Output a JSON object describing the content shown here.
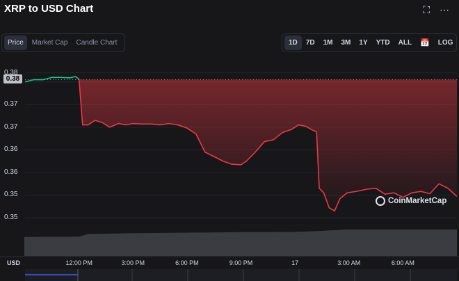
{
  "header": {
    "title": "XRP to USD Chart"
  },
  "icons": {
    "fullscreen": "fullscreen-icon",
    "more": "more-icon",
    "calendar": "calendar-icon"
  },
  "tabs": [
    {
      "label": "Price",
      "active": true
    },
    {
      "label": "Market Cap",
      "active": false
    },
    {
      "label": "Candle Chart",
      "active": false
    }
  ],
  "ranges": [
    {
      "label": "1D",
      "active": true
    },
    {
      "label": "7D",
      "active": false
    },
    {
      "label": "1M",
      "active": false
    },
    {
      "label": "3M",
      "active": false
    },
    {
      "label": "1Y",
      "active": false
    },
    {
      "label": "YTD",
      "active": false
    },
    {
      "label": "ALL",
      "active": false
    }
  ],
  "log_label": "LOG",
  "current_price": "0.38",
  "currency_label": "USD",
  "watermark": "CoinMarketCap",
  "colors": {
    "up": "#16c784",
    "down": "#ea3943",
    "bg": "#17171a"
  },
  "chart_data": {
    "type": "line",
    "title": "",
    "xlabel": "",
    "ylabel": "",
    "ytick_labels": [
      "0.38",
      "0.38",
      "0.37",
      "0.37",
      "0.36",
      "0.36",
      "0.35",
      "0.35"
    ],
    "ytick_values": [
      0.38,
      0.378,
      0.373,
      0.368,
      0.363,
      0.358,
      0.353,
      0.348
    ],
    "ylim": [
      0.346,
      0.3815
    ],
    "xtick_labels": [
      "12:00 PM",
      "3:00 PM",
      "6:00 PM",
      "9:00 PM",
      "17",
      "3:00 AM",
      "6:00 AM"
    ],
    "xtick_values": [
      3,
      6,
      9,
      12,
      15,
      18,
      21
    ],
    "xlim": [
      0,
      24
    ],
    "reference_price": 0.3785,
    "series": [
      {
        "x": [
          0,
          0.5,
          1.0,
          1.5,
          2.0,
          2.5,
          2.8,
          3.0,
          3.2,
          3.5,
          3.9,
          4.3,
          4.7,
          5.2,
          5.6,
          6.0,
          6.5,
          7.0,
          7.5,
          8.0,
          8.5,
          9.0,
          9.5,
          10.0,
          10.5,
          11.0,
          11.5,
          12.0,
          12.3,
          12.8,
          13.3,
          13.8,
          14.3,
          14.8,
          15.2,
          15.6,
          16.0,
          16.2,
          16.35,
          16.6,
          16.9,
          17.2,
          17.5,
          17.9,
          18.4,
          19.0,
          19.5,
          20.0,
          20.5,
          21.0,
          21.5,
          22.0,
          22.5,
          23.0,
          23.5,
          24.0
        ],
        "y": [
          0.378,
          0.3785,
          0.3785,
          0.379,
          0.379,
          0.3789,
          0.3792,
          0.3786,
          0.3685,
          0.3685,
          0.3695,
          0.369,
          0.368,
          0.3688,
          0.3685,
          0.3688,
          0.3687,
          0.3687,
          0.3685,
          0.3688,
          0.3685,
          0.3678,
          0.3665,
          0.3625,
          0.3615,
          0.3605,
          0.3598,
          0.3597,
          0.3605,
          0.3625,
          0.3648,
          0.3652,
          0.3668,
          0.3675,
          0.3685,
          0.3682,
          0.3673,
          0.367,
          0.3545,
          0.3535,
          0.3502,
          0.3495,
          0.3522,
          0.3535,
          0.3538,
          0.3543,
          0.3545,
          0.3532,
          0.3535,
          0.3525,
          0.3535,
          0.3538,
          0.3533,
          0.3555,
          0.3545,
          0.3527
        ]
      }
    ],
    "volume": {
      "x": [
        0,
        3,
        3.5,
        6,
        9,
        12,
        15,
        16.3,
        17,
        18,
        21,
        24
      ],
      "values": [
        0.72,
        0.73,
        0.83,
        0.86,
        0.88,
        0.9,
        0.91,
        0.94,
        0.97,
        1.0,
        1.0,
        1.0
      ]
    }
  }
}
